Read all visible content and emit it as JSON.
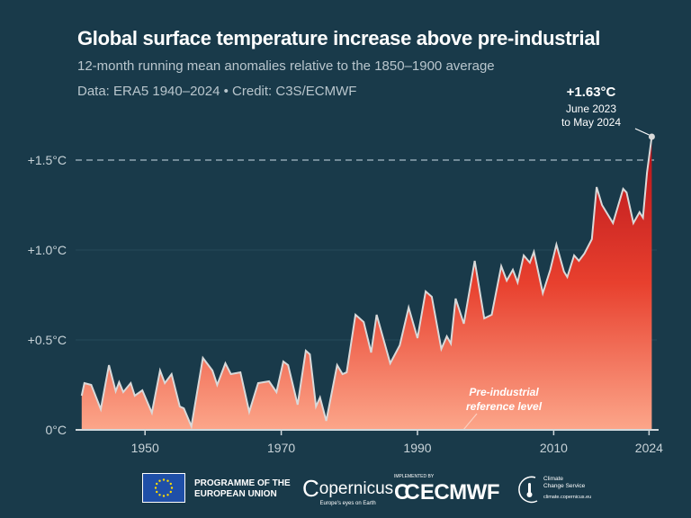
{
  "header": {
    "title": "Global surface temperature increase above pre-industrial",
    "subtitle": "12-month running mean anomalies relative to the 1850–1900 average",
    "source": "Data: ERA5 1940–2024 • Credit: C3S/ECMWF"
  },
  "chart_data": {
    "type": "area",
    "title": "Global surface temperature increase above pre-industrial",
    "xlabel": "",
    "ylabel": "",
    "xlim": [
      1940,
      2024.4
    ],
    "ylim": [
      0,
      1.63
    ],
    "x_ticks": [
      "1950",
      "1970",
      "1990",
      "2010",
      "2024"
    ],
    "x_tick_values": [
      1950,
      1970,
      1990,
      2010,
      2024
    ],
    "y_ticks": [
      "0°C",
      "+0.5°C",
      "+1.0°C",
      "+1.5°C"
    ],
    "y_tick_values": [
      0,
      0.5,
      1.0,
      1.5
    ],
    "reference_line": {
      "value": 1.5,
      "style": "dashed"
    },
    "grid": true,
    "colors": {
      "fill_top": "#b5121b",
      "fill_mid": "#e8402e",
      "fill_bottom": "#fca68a",
      "line": "#d9d9d9",
      "background": "#193a4a"
    },
    "x": [
      1940.7,
      1941.1,
      1942.1,
      1943.5,
      1944.7,
      1945.7,
      1946.2,
      1946.8,
      1947.9,
      1948.5,
      1949.6,
      1951.0,
      1952.2,
      1952.9,
      1953.9,
      1955.1,
      1955.7,
      1956.8,
      1958.5,
      1959.9,
      1960.6,
      1961.8,
      1962.6,
      1964.0,
      1965.3,
      1966.6,
      1968.2,
      1969.3,
      1970.3,
      1971.0,
      1972.4,
      1973.6,
      1974.2,
      1975.1,
      1975.7,
      1976.6,
      1978.2,
      1979.0,
      1979.6,
      1980.9,
      1982.1,
      1983.2,
      1984.0,
      1986.0,
      1987.4,
      1988.7,
      1990.0,
      1991.2,
      1992.1,
      1993.5,
      1994.3,
      1994.9,
      1995.6,
      1996.8,
      1998.4,
      1999.8,
      2000.9,
      2002.3,
      2003.1,
      2004.0,
      2004.7,
      2005.6,
      2006.5,
      2007.1,
      2008.4,
      2009.5,
      2010.4,
      2011.5,
      2012.0,
      2013.0,
      2013.7,
      2014.5,
      2015.6,
      2016.3,
      2017.1,
      2018.7,
      2020.2,
      2020.7,
      2021.7,
      2022.6,
      2023.1,
      2023.7,
      2024.4
    ],
    "values": [
      0.19,
      0.26,
      0.25,
      0.115,
      0.36,
      0.215,
      0.265,
      0.21,
      0.26,
      0.19,
      0.22,
      0.095,
      0.33,
      0.26,
      0.31,
      0.13,
      0.12,
      0.02,
      0.4,
      0.33,
      0.25,
      0.37,
      0.31,
      0.32,
      0.1,
      0.26,
      0.27,
      0.21,
      0.38,
      0.36,
      0.14,
      0.44,
      0.42,
      0.13,
      0.18,
      0.05,
      0.36,
      0.31,
      0.32,
      0.64,
      0.6,
      0.43,
      0.64,
      0.37,
      0.47,
      0.68,
      0.51,
      0.77,
      0.74,
      0.45,
      0.52,
      0.48,
      0.73,
      0.59,
      0.94,
      0.62,
      0.64,
      0.91,
      0.83,
      0.89,
      0.82,
      0.97,
      0.93,
      0.99,
      0.76,
      0.89,
      1.03,
      0.88,
      0.85,
      0.97,
      0.94,
      0.98,
      1.06,
      1.35,
      1.25,
      1.15,
      1.34,
      1.32,
      1.15,
      1.21,
      1.18,
      1.43,
      1.63
    ],
    "annotations": [
      {
        "value": "+1.63°C",
        "text1": "June 2023",
        "text2": "to May 2024"
      },
      {
        "text1": "Pre-industrial",
        "text2": "reference level"
      }
    ]
  },
  "footer": {
    "eu_line1": "PROGRAMME OF THE",
    "eu_line2": "EUROPEAN UNION",
    "copernicus": "opernicus",
    "copernicus_tagline": "Europe's eyes on Earth",
    "implemented_by": "IMPLEMENTED BY",
    "ecmwf": "ECMWF",
    "c3s_line1": "Climate",
    "c3s_line2": "Change Service",
    "c3s_url": "climate.copernicus.eu"
  }
}
